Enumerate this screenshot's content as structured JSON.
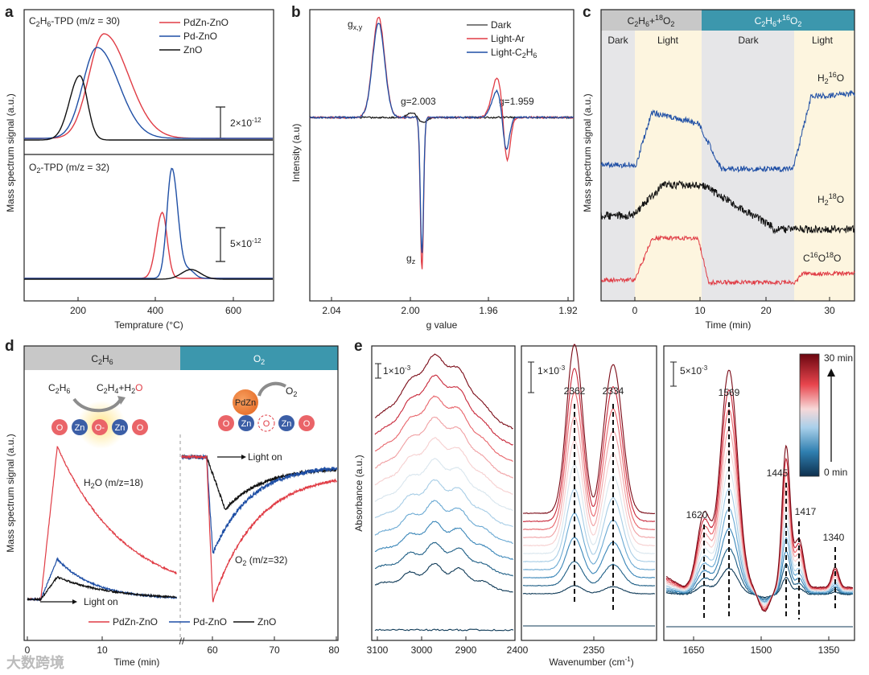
{
  "watermark": "大数跨境",
  "colors": {
    "red": "#e03c45",
    "blue": "#1f4fa5",
    "black": "#111111",
    "band_gray": "#c8c8c8",
    "band_teal": "#3c97ad",
    "dark_shade": "#e6e6e8",
    "light_shade": "#fdf5df"
  },
  "panels": {
    "a": {
      "label": "a",
      "top_title": "C2H6-TPD (m/z = 30)",
      "bottom_title": "O2-TPD (m/z = 32)",
      "legend": [
        "PdZn-ZnO",
        "Pd-ZnO",
        "ZnO"
      ],
      "scale_top": "2×10",
      "scale_top_exp": "-12",
      "scale_bottom": "5×10",
      "scale_bottom_exp": "-12",
      "xlabel": "Temprature (°C)",
      "ylabel": "Mass spectrum signal (a.u.)",
      "xticks": [
        "200",
        "400",
        "600"
      ]
    },
    "b": {
      "label": "b",
      "legend": [
        "Dark",
        "Light-Ar",
        "Light-C2H6"
      ],
      "ann_gxy": "gx,y",
      "ann_g2003": "g=2.003",
      "ann_g1959": "g=1.959",
      "ann_gz": "gz",
      "xlabel": "g value",
      "ylabel": "Intensity (a.u)",
      "xticks": [
        "2.04",
        "2.00",
        "1.96",
        "1.92"
      ]
    },
    "c": {
      "label": "c",
      "band_left": "C2H6+18O2",
      "band_right": "C2H6+16O2",
      "regions": [
        "Dark",
        "Light",
        "Dark",
        "Light"
      ],
      "species": [
        "H216O",
        "H218O",
        "C16O18O"
      ],
      "xlabel": "Time (min)",
      "ylabel": "Mass spectrum signal (a.u.)",
      "xticks": [
        "0",
        "10",
        "20",
        "30"
      ]
    },
    "d": {
      "label": "d",
      "band_left": "C2H6",
      "band_right": "O2",
      "reaction_in": "C2H6",
      "reaction_out": "C2H4+H2",
      "reaction_out_o": "O",
      "o2_label": "O2",
      "pdzn": "PdZn",
      "lattice": [
        "O",
        "Zn",
        "O-",
        "Zn",
        "O"
      ],
      "lattice_right": [
        "O",
        "Zn",
        "O",
        "Zn",
        "O"
      ],
      "light_on_1": "Light on",
      "light_on_2": "Light on",
      "h2o_label": "H2O (m/z=18)",
      "o2_curve_label": "O2 (m/z=32)",
      "legend": [
        "PdZn-ZnO",
        "Pd-ZnO",
        "ZnO"
      ],
      "xlabel": "Time (min)",
      "ylabel": "Mass spectrum signal (a.u.)",
      "xticks": [
        "0",
        "10",
        "60",
        "70",
        "80"
      ],
      "break_mark": "//"
    },
    "e": {
      "label": "e",
      "scale": [
        "1×10",
        "1×10",
        "5×10"
      ],
      "scale_exp": "-3",
      "peaks_mid": [
        "2362",
        "2334"
      ],
      "peaks_right": [
        "1569",
        "1445",
        "1620",
        "1417",
        "1340"
      ],
      "colorbar_top": "30 min",
      "colorbar_bottom": "0 min",
      "xlabel": "Wavenumber (cm-1)",
      "ylabel": "Absorbance (a.u.)",
      "xticks_left": [
        "3100",
        "3000",
        "2900",
        "2400"
      ],
      "xticks_mid": [
        "2350"
      ],
      "xticks_right": [
        "1650",
        "1500",
        "1350"
      ]
    }
  },
  "chart_data": [
    {
      "panel": "a-top",
      "type": "line",
      "title": "C2H6-TPD (m/z = 30)",
      "xlabel": "Temprature (°C)",
      "ylabel": "Mass spectrum signal (a.u.)",
      "xlim": [
        50,
        700
      ],
      "series": [
        {
          "name": "PdZn-ZnO",
          "peak_x": 258,
          "peak_height": 1.0,
          "width": 60
        },
        {
          "name": "Pd-ZnO",
          "peak_x": 240,
          "peak_height": 0.86,
          "width": 62
        },
        {
          "name": "ZnO",
          "peak_x": 195,
          "peak_height": 0.6,
          "width": 40
        }
      ]
    },
    {
      "panel": "a-bottom",
      "type": "line",
      "title": "O2-TPD (m/z = 32)",
      "xlim": [
        50,
        700
      ],
      "series": [
        {
          "name": "PdZn-ZnO",
          "peak_x": 410,
          "peak_height": 0.58
        },
        {
          "name": "Pd-ZnO",
          "peak_x": 435,
          "peak_height": 1.0
        },
        {
          "name": "ZnO",
          "peak_x": 480,
          "peak_height": 0.08
        }
      ]
    },
    {
      "panel": "b",
      "type": "line",
      "xlabel": "g value",
      "ylabel": "Intensity (a.u)",
      "xlim": [
        2.06,
        1.92
      ],
      "series": [
        {
          "name": "Dark",
          "features": [
            {
              "g": 2.003,
              "amp": 0.1
            }
          ]
        },
        {
          "name": "Light-Ar",
          "features": [
            {
              "g": 2.022,
              "amp": 1.0
            },
            {
              "g": 2.0,
              "amp": -1.6
            },
            {
              "g": 1.959,
              "amp": 0.45
            }
          ]
        },
        {
          "name": "Light-C2H6",
          "features": [
            {
              "g": 2.022,
              "amp": 0.9
            },
            {
              "g": 2.0,
              "amp": -1.5
            },
            {
              "g": 1.959,
              "amp": 0.32
            }
          ]
        }
      ]
    },
    {
      "panel": "c",
      "type": "line",
      "xlabel": "Time (min)",
      "ylabel": "Mass spectrum signal (a.u.)",
      "xlim": [
        -5,
        35
      ],
      "regions": [
        {
          "label": "Dark",
          "x": [
            -5,
            0
          ]
        },
        {
          "label": "Light",
          "x": [
            0,
            10.5
          ]
        },
        {
          "label": "Dark",
          "x": [
            10.5,
            25.5
          ]
        },
        {
          "label": "Light",
          "x": [
            25.5,
            35
          ]
        }
      ],
      "series": [
        {
          "name": "H216O"
        },
        {
          "name": "H218O"
        },
        {
          "name": "C16O18O"
        }
      ]
    },
    {
      "panel": "d",
      "type": "line",
      "xlabel": "Time (min)",
      "ylabel": "Mass spectrum signal (a.u.)",
      "series": [
        {
          "name": "PdZn-ZnO",
          "h2o_peak_min": 4,
          "o2_dip_min": 60
        },
        {
          "name": "Pd-ZnO",
          "h2o_peak_min": 4,
          "o2_dip_min": 60
        },
        {
          "name": "ZnO",
          "h2o_peak_min": 4,
          "o2_dip_min": 62
        }
      ]
    },
    {
      "panel": "e",
      "type": "line",
      "xlabel": "Wavenumber (cm-1)",
      "ylabel": "Absorbance (a.u.)",
      "time_range_min": [
        0,
        30
      ],
      "peaks": [
        2362,
        2334,
        1620,
        1569,
        1445,
        1417,
        1340
      ]
    }
  ]
}
